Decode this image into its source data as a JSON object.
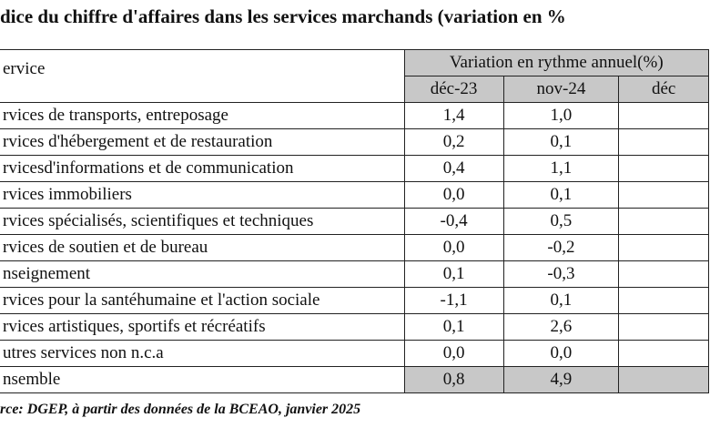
{
  "header": {
    "title": "dice du chiffre d'affaires dans les services marchands (variation en %"
  },
  "table": {
    "row_header": "ervice",
    "group_header": "Variation en rythme annuel(%)",
    "columns": [
      "déc-23",
      "nov-24",
      "déc"
    ],
    "rows": [
      [
        "rvices de transports, entreposage",
        "1,4",
        "1,0"
      ],
      [
        "rvices d'hébergement et de restauration",
        "0,2",
        "0,1"
      ],
      [
        "rvicesd'informations et de communication",
        "0,4",
        "1,1"
      ],
      [
        "rvices immobiliers",
        "0,0",
        "0,1"
      ],
      [
        "rvices spécialisés, scientifiques et techniques",
        "-0,4",
        "0,5"
      ],
      [
        "rvices de soutien et de bureau",
        "0,0",
        "-0,2"
      ],
      [
        "nseignement",
        "0,1",
        "-0,3"
      ],
      [
        "rvices pour la santéhumaine et l'action sociale",
        "-1,1",
        "0,1"
      ],
      [
        "rvices artistiques, sportifs et récréatifs",
        "0,1",
        "2,6"
      ],
      [
        "utres services non n.c.a",
        "0,0",
        "0,0"
      ],
      [
        "nsemble",
        "0,8",
        "4,9"
      ]
    ]
  },
  "footer": {
    "source": "rce: DGEP, à partir des données de la BCEAO, janvier 2025"
  }
}
